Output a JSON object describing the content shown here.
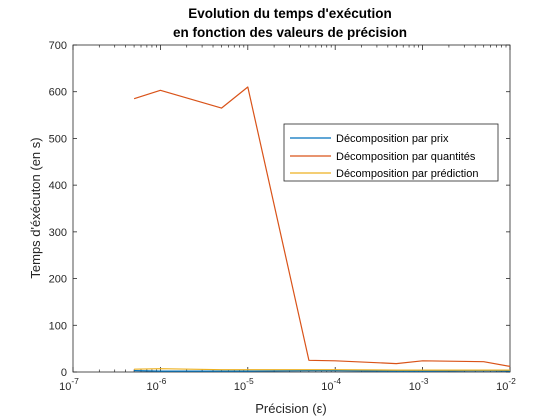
{
  "chart_data": {
    "type": "line",
    "title": [
      "Evolution du temps d'exécution",
      "en fonction des valeurs de précision"
    ],
    "xlabel": "Précision (ε)",
    "ylabel": "Temps d'éxécuton (en s)",
    "xscale": "log",
    "xlim": [
      1e-07,
      0.01
    ],
    "ylim": [
      0,
      700
    ],
    "xticks": [
      {
        "value": 1e-07,
        "base": "10",
        "exp": "-7"
      },
      {
        "value": 1e-06,
        "base": "10",
        "exp": "-6"
      },
      {
        "value": 1e-05,
        "base": "10",
        "exp": "-5"
      },
      {
        "value": 0.0001,
        "base": "10",
        "exp": "-4"
      },
      {
        "value": 0.001,
        "base": "10",
        "exp": "-3"
      },
      {
        "value": 0.01,
        "base": "10",
        "exp": "-2"
      }
    ],
    "yticks": [
      0,
      100,
      200,
      300,
      400,
      500,
      600,
      700
    ],
    "legend_position": "top-right",
    "x": [
      5e-07,
      1e-06,
      5e-06,
      1e-05,
      5e-05,
      0.0001,
      0.0005,
      0.001,
      0.005,
      0.01
    ],
    "series": [
      {
        "name": "Décomposition par prix",
        "color": "#0072bd",
        "values": [
          3,
          2,
          2,
          2,
          3,
          3,
          2,
          2,
          3,
          2
        ]
      },
      {
        "name": "Décomposition par quantités",
        "color": "#d95319",
        "values": [
          585,
          603,
          565,
          610,
          25,
          24,
          18,
          24,
          22,
          12
        ]
      },
      {
        "name": "Décomposition par prédiction",
        "color": "#edb120",
        "values": [
          6,
          7,
          5,
          5,
          5,
          5,
          4,
          4,
          4,
          4
        ]
      }
    ]
  }
}
